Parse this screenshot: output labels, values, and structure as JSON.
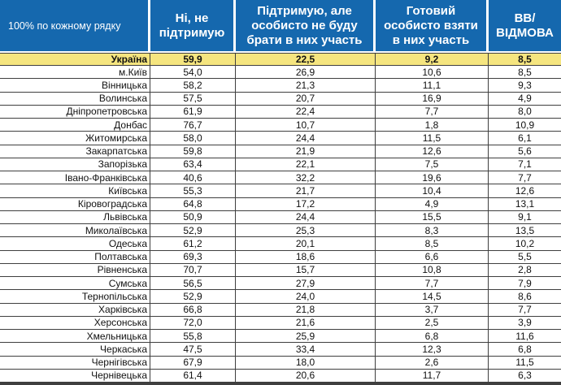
{
  "colors": {
    "header_bg": "#1568AE",
    "header_text": "#FFFFFF",
    "highlight_bg": "#F5E57F",
    "grid_line": "#3F3F3F",
    "body_text": "#111111"
  },
  "chart_data": {
    "type": "table",
    "corner_label": "100% по кожному рядку",
    "columns": [
      "Ні, не\nпідтримую",
      "Підтримую, але\nособисто не буду\nбрати в них участь",
      "Готовий\nособисто взяти\nв них участь",
      "ВВ/\nВІДМОВА"
    ],
    "rows": [
      {
        "label": "Україна",
        "highlight": true,
        "values": [
          59.9,
          22.5,
          9.2,
          8.5
        ]
      },
      {
        "label": "м.Київ",
        "values": [
          54.0,
          26.9,
          10.6,
          8.5
        ]
      },
      {
        "label": "Вінницька",
        "values": [
          58.2,
          21.3,
          11.1,
          9.3
        ]
      },
      {
        "label": "Волинська",
        "values": [
          57.5,
          20.7,
          16.9,
          4.9
        ]
      },
      {
        "label": "Дніпропетровська",
        "values": [
          61.9,
          22.4,
          7.7,
          8.0
        ]
      },
      {
        "label": "Донбас",
        "values": [
          76.7,
          10.7,
          1.8,
          10.9
        ]
      },
      {
        "label": "Житомирська",
        "values": [
          58.0,
          24.4,
          11.5,
          6.1
        ]
      },
      {
        "label": "Закарпатська",
        "values": [
          59.8,
          21.9,
          12.6,
          5.6
        ]
      },
      {
        "label": "Запорізька",
        "values": [
          63.4,
          22.1,
          7.5,
          7.1
        ]
      },
      {
        "label": "Івано-Франківська",
        "values": [
          40.6,
          32.2,
          19.6,
          7.7
        ]
      },
      {
        "label": "Київська",
        "values": [
          55.3,
          21.7,
          10.4,
          12.6
        ]
      },
      {
        "label": "Кіровоградська",
        "values": [
          64.8,
          17.2,
          4.9,
          13.1
        ]
      },
      {
        "label": "Львівська",
        "values": [
          50.9,
          24.4,
          15.5,
          9.1
        ]
      },
      {
        "label": "Миколаївська",
        "values": [
          52.9,
          25.3,
          8.3,
          13.5
        ]
      },
      {
        "label": "Одеська",
        "values": [
          61.2,
          20.1,
          8.5,
          10.2
        ]
      },
      {
        "label": "Полтавська",
        "values": [
          69.3,
          18.6,
          6.6,
          5.5
        ]
      },
      {
        "label": "Рівненська",
        "values": [
          70.7,
          15.7,
          10.8,
          2.8
        ]
      },
      {
        "label": "Сумська",
        "values": [
          56.5,
          27.9,
          7.7,
          7.9
        ]
      },
      {
        "label": "Тернопільська",
        "values": [
          52.9,
          24.0,
          14.5,
          8.6
        ]
      },
      {
        "label": "Харківська",
        "values": [
          66.8,
          21.8,
          3.7,
          7.7
        ]
      },
      {
        "label": "Херсонська",
        "values": [
          72.0,
          21.6,
          2.5,
          3.9
        ]
      },
      {
        "label": "Хмельницька",
        "values": [
          55.8,
          25.9,
          6.8,
          11.6
        ]
      },
      {
        "label": "Черкаська",
        "values": [
          47.5,
          33.4,
          12.3,
          6.8
        ]
      },
      {
        "label": "Чернігівська",
        "values": [
          67.9,
          18.0,
          2.6,
          11.5
        ]
      },
      {
        "label": "Чернівецька",
        "values": [
          61.4,
          20.6,
          11.7,
          6.3
        ]
      }
    ]
  }
}
